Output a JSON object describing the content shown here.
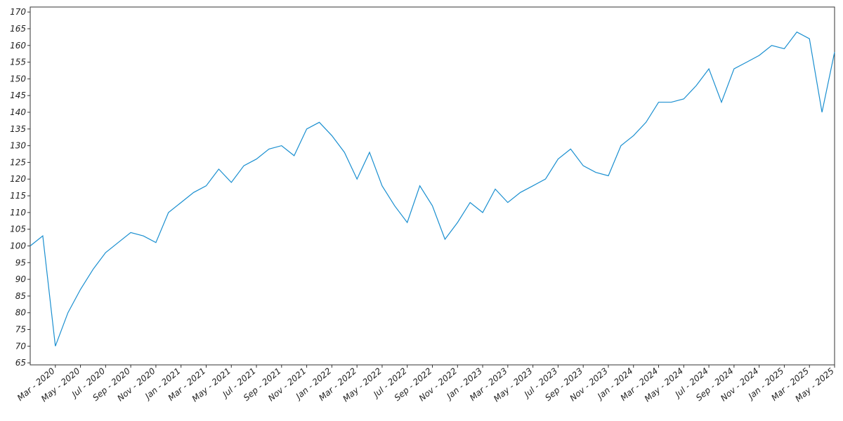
{
  "chart_data": {
    "type": "line",
    "x": [
      "2020-01",
      "2020-02",
      "2020-03",
      "2020-04",
      "2020-05",
      "2020-06",
      "2020-07",
      "2020-08",
      "2020-09",
      "2020-10",
      "2020-11",
      "2020-12",
      "2021-01",
      "2021-02",
      "2021-03",
      "2021-04",
      "2021-05",
      "2021-06",
      "2021-07",
      "2021-08",
      "2021-09",
      "2021-10",
      "2021-11",
      "2021-12",
      "2022-01",
      "2022-02",
      "2022-03",
      "2022-04",
      "2022-05",
      "2022-06",
      "2022-07",
      "2022-08",
      "2022-09",
      "2022-10",
      "2022-11",
      "2022-12",
      "2023-01",
      "2023-02",
      "2023-03",
      "2023-04",
      "2023-05",
      "2023-06",
      "2023-07",
      "2023-08",
      "2023-09",
      "2023-10",
      "2023-11",
      "2023-12",
      "2024-01",
      "2024-02",
      "2024-03",
      "2024-04",
      "2024-05",
      "2024-06",
      "2024-07",
      "2024-08",
      "2024-09",
      "2024-10",
      "2024-11",
      "2024-12",
      "2025-01",
      "2025-02",
      "2025-03",
      "2025-04",
      "2025-05"
    ],
    "series": [
      {
        "color": "#1a8fd0",
        "values": [
          100,
          103,
          70,
          80,
          87,
          93,
          98,
          101,
          104,
          103,
          101,
          110,
          113,
          116,
          118,
          123,
          119,
          124,
          126,
          129,
          130,
          127,
          135,
          137,
          133,
          128,
          120,
          128,
          118,
          112,
          107,
          118,
          112,
          102,
          107,
          113,
          110,
          117,
          113,
          116,
          118,
          120,
          126,
          129,
          124,
          122,
          121,
          130,
          133,
          137,
          143,
          143,
          144,
          148,
          153,
          143,
          153,
          155,
          157,
          160,
          159,
          164,
          162,
          140,
          158
        ]
      }
    ],
    "xlim": [
      "2020-01",
      "2025-05"
    ],
    "xticks": [
      {
        "value": "2020-03",
        "label": "Mar - 2020"
      },
      {
        "value": "2020-05",
        "label": "May - 2020"
      },
      {
        "value": "2020-07",
        "label": "Jul - 2020"
      },
      {
        "value": "2020-09",
        "label": "Sep - 2020"
      },
      {
        "value": "2020-11",
        "label": "Nov - 2020"
      },
      {
        "value": "2021-01",
        "label": "Jan - 2021"
      },
      {
        "value": "2021-03",
        "label": "Mar - 2021"
      },
      {
        "value": "2021-05",
        "label": "May - 2021"
      },
      {
        "value": "2021-07",
        "label": "Jul - 2021"
      },
      {
        "value": "2021-09",
        "label": "Sep - 2021"
      },
      {
        "value": "2021-11",
        "label": "Nov - 2021"
      },
      {
        "value": "2022-01",
        "label": "Jan - 2022"
      },
      {
        "value": "2022-03",
        "label": "Mar - 2022"
      },
      {
        "value": "2022-05",
        "label": "May - 2022"
      },
      {
        "value": "2022-07",
        "label": "Jul - 2022"
      },
      {
        "value": "2022-09",
        "label": "Sep - 2022"
      },
      {
        "value": "2022-11",
        "label": "Nov - 2022"
      },
      {
        "value": "2023-01",
        "label": "Jan - 2023"
      },
      {
        "value": "2023-03",
        "label": "Mar - 2023"
      },
      {
        "value": "2023-05",
        "label": "May - 2023"
      },
      {
        "value": "2023-07",
        "label": "Jul - 2023"
      },
      {
        "value": "2023-09",
        "label": "Sep - 2023"
      },
      {
        "value": "2023-11",
        "label": "Nov - 2023"
      },
      {
        "value": "2024-01",
        "label": "Jan - 2024"
      },
      {
        "value": "2024-03",
        "label": "Mar - 2024"
      },
      {
        "value": "2024-05",
        "label": "May - 2024"
      },
      {
        "value": "2024-07",
        "label": "Jul - 2024"
      },
      {
        "value": "2024-09",
        "label": "Sep - 2024"
      },
      {
        "value": "2024-11",
        "label": "Nov - 2024"
      },
      {
        "value": "2025-01",
        "label": "Jan - 2025"
      },
      {
        "value": "2025-03",
        "label": "Mar - 2025"
      },
      {
        "value": "2025-05",
        "label": "May - 2025"
      }
    ],
    "ylim": [
      64.4,
      171.5
    ],
    "yticks": [
      65,
      70,
      75,
      80,
      85,
      90,
      95,
      100,
      105,
      110,
      115,
      120,
      125,
      130,
      135,
      140,
      145,
      150,
      155,
      160,
      165,
      170
    ]
  }
}
